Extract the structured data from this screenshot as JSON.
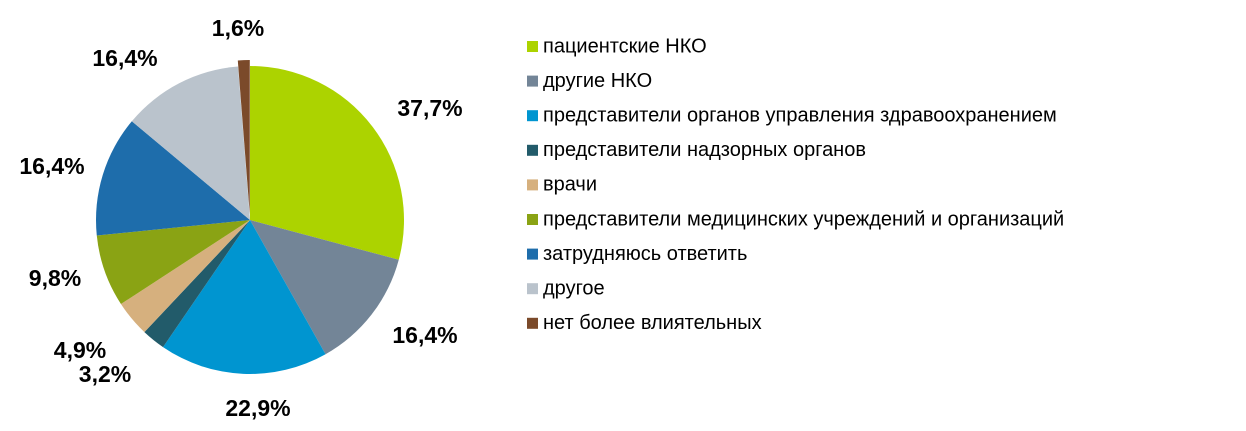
{
  "chart_data": {
    "type": "pie",
    "categories": [
      "пациентские НКО",
      "другие НКО",
      "представители органов управления здравоохранением",
      "представители надзорных органов",
      "врачи",
      "представители медицинских учреждений и организаций",
      "затрудняюсь ответить",
      "другое",
      "нет более влиятельных"
    ],
    "values": [
      37.7,
      16.4,
      22.9,
      3.2,
      4.9,
      9.8,
      16.4,
      16.4,
      1.6
    ],
    "value_labels": [
      "37,7%",
      "16,4%",
      "22,9%",
      "3,2%",
      "4,9%",
      "9,8%",
      "16,4%",
      "16,4%",
      "1,6%"
    ],
    "colors": [
      "#acd300",
      "#738597",
      "#0095d0",
      "#225b6a",
      "#d6b07e",
      "#8aa314",
      "#1e6dab",
      "#bac3cc",
      "#7b4a2a"
    ],
    "legend": "right"
  }
}
